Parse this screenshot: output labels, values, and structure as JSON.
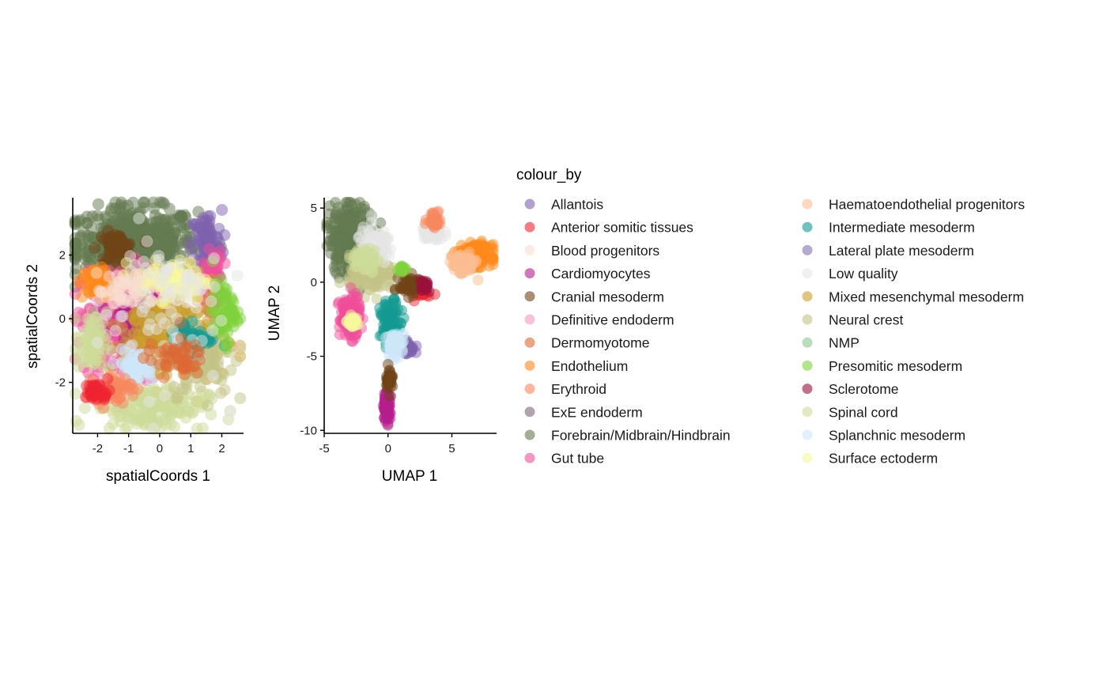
{
  "chart_data": [
    {
      "type": "scatter",
      "xlabel": "spatialCoords 1",
      "ylabel": "spatialCoords 2",
      "xlim": [
        -2.8,
        2.7
      ],
      "ylim": [
        -3.6,
        3.8
      ],
      "xticks": [
        -2,
        -1,
        0,
        1,
        2
      ],
      "yticks": [
        -2,
        0,
        2
      ],
      "xtick_labels": [
        "-2",
        "-1",
        "0",
        "1",
        "2"
      ],
      "ytick_labels": [
        "-2",
        "0",
        "2"
      ],
      "grid": false,
      "point_alpha": 0.5,
      "regions": [
        {
          "group": "Forebrain/Midbrain/Hindbrain",
          "cx": -0.8,
          "cy": 2.4,
          "rx": 2.0,
          "ry": 1.1,
          "n": 500
        },
        {
          "group": "Cranial mesoderm",
          "cx": -1.4,
          "cy": 2.2,
          "rx": 0.6,
          "ry": 0.5,
          "n": 60
        },
        {
          "group": "Allantois",
          "cx": 1.5,
          "cy": 2.4,
          "rx": 0.5,
          "ry": 1.0,
          "n": 90
        },
        {
          "group": "Gut tube",
          "cx": -1.2,
          "cy": -0.2,
          "rx": 1.3,
          "ry": 1.8,
          "n": 260
        },
        {
          "group": "Gut tube",
          "cx": 1.7,
          "cy": 1.2,
          "rx": 0.3,
          "ry": 0.9,
          "n": 70
        },
        {
          "group": "Cardiomyocytes",
          "cx": -0.6,
          "cy": 0.2,
          "rx": 0.8,
          "ry": 0.6,
          "n": 160
        },
        {
          "group": "Mixed mesenchymal mesoderm",
          "cx": 0.2,
          "cy": -0.6,
          "rx": 1.8,
          "ry": 1.6,
          "n": 240
        },
        {
          "group": "Spinal cord",
          "cx": -0.3,
          "cy": -2.8,
          "rx": 1.8,
          "ry": 0.7,
          "n": 160
        },
        {
          "group": "Spinal cord",
          "cx": -2.2,
          "cy": -0.8,
          "rx": 0.5,
          "ry": 1.0,
          "n": 70
        },
        {
          "group": "Surface ectoderm",
          "cx": 0.4,
          "cy": 1.2,
          "rx": 1.2,
          "ry": 0.6,
          "n": 100
        },
        {
          "group": "Neural crest",
          "cx": 1.4,
          "cy": -1.2,
          "rx": 1.0,
          "ry": 1.2,
          "n": 100
        },
        {
          "group": "Intermediate mesoderm",
          "cx": 1.0,
          "cy": -0.6,
          "rx": 0.8,
          "ry": 0.6,
          "n": 60
        },
        {
          "group": "Splanchnic mesoderm",
          "cx": -0.8,
          "cy": -1.5,
          "rx": 0.6,
          "ry": 0.5,
          "n": 70
        },
        {
          "group": "Erythroid",
          "cx": -1.5,
          "cy": -2.2,
          "rx": 0.6,
          "ry": 0.4,
          "n": 50
        },
        {
          "group": "Anterior somitic tissues",
          "cx": -2.0,
          "cy": -2.3,
          "rx": 0.4,
          "ry": 0.3,
          "n": 40
        },
        {
          "group": "Endothelium",
          "cx": -2.0,
          "cy": 1.1,
          "rx": 0.5,
          "ry": 0.5,
          "n": 60
        },
        {
          "group": "Presomitic mesoderm",
          "cx": 2.1,
          "cy": 0.2,
          "rx": 0.4,
          "ry": 0.9,
          "n": 70
        },
        {
          "group": "Low quality",
          "cx": 0.0,
          "cy": 0.4,
          "rx": 2.0,
          "ry": 2.6,
          "n": 90
        },
        {
          "group": "Dermomyotome",
          "cx": 0.5,
          "cy": -1.2,
          "rx": 0.9,
          "ry": 0.6,
          "n": 50
        },
        {
          "group": "Blood progenitors",
          "cx": -1.2,
          "cy": 0.8,
          "rx": 0.8,
          "ry": 0.6,
          "n": 40
        }
      ]
    },
    {
      "type": "scatter",
      "xlabel": "UMAP 1",
      "ylabel": "UMAP 2",
      "xlim": [
        -5,
        8.5
      ],
      "ylim": [
        -10.2,
        5.7
      ],
      "xticks": [
        -5,
        0,
        5
      ],
      "yticks": [
        -10,
        -5,
        0,
        5
      ],
      "xtick_labels": [
        "-5",
        "0",
        "5"
      ],
      "ytick_labels": [
        "-10",
        "-5",
        "0",
        "5"
      ],
      "grid": false,
      "point_alpha": 0.5,
      "regions": [
        {
          "group": "Forebrain/Midbrain/Hindbrain",
          "cx": -2.8,
          "cy": 3.0,
          "rx": 1.8,
          "ry": 2.3,
          "n": 350
        },
        {
          "group": "Neural crest",
          "cx": -1.2,
          "cy": 0.5,
          "rx": 1.8,
          "ry": 1.2,
          "n": 150
        },
        {
          "group": "Low quality",
          "cx": -1.0,
          "cy": 2.5,
          "rx": 1.5,
          "ry": 1.2,
          "n": 70
        },
        {
          "group": "Low quality",
          "cx": 3.5,
          "cy": 3.3,
          "rx": 0.9,
          "ry": 0.5,
          "n": 60
        },
        {
          "group": "Erythroid",
          "cx": 3.6,
          "cy": 4.3,
          "rx": 0.5,
          "ry": 0.6,
          "n": 40
        },
        {
          "group": "Endothelium",
          "cx": 6.8,
          "cy": 1.8,
          "rx": 1.3,
          "ry": 0.7,
          "n": 200
        },
        {
          "group": "Haematoendothelial progenitors",
          "cx": 5.9,
          "cy": 1.2,
          "rx": 0.9,
          "ry": 0.7,
          "n": 80
        },
        {
          "group": "Anterior somitic tissues",
          "cx": 2.6,
          "cy": -0.6,
          "rx": 0.5,
          "ry": 0.5,
          "n": 40
        },
        {
          "group": "Cranial mesoderm",
          "cx": 1.8,
          "cy": -0.2,
          "rx": 0.9,
          "ry": 0.6,
          "n": 70
        },
        {
          "group": "Gut tube",
          "cx": -3.0,
          "cy": -2.3,
          "rx": 0.8,
          "ry": 1.4,
          "n": 130
        },
        {
          "group": "Surface ectoderm",
          "cx": -2.8,
          "cy": -2.7,
          "rx": 0.4,
          "ry": 0.4,
          "n": 30
        },
        {
          "group": "Intermediate mesoderm",
          "cx": 0.2,
          "cy": -2.8,
          "rx": 0.8,
          "ry": 1.5,
          "n": 100
        },
        {
          "group": "Allantois",
          "cx": 1.5,
          "cy": -4.4,
          "rx": 0.6,
          "ry": 0.5,
          "n": 40
        },
        {
          "group": "Splanchnic mesoderm",
          "cx": 0.6,
          "cy": -4.2,
          "rx": 0.7,
          "ry": 0.8,
          "n": 60
        },
        {
          "group": "Cardiomyocytes",
          "cx": -0.1,
          "cy": -8.4,
          "rx": 0.25,
          "ry": 1.0,
          "n": 80
        },
        {
          "group": "Cranial mesoderm",
          "cx": 0.1,
          "cy": -6.5,
          "rx": 0.25,
          "ry": 0.8,
          "n": 40
        },
        {
          "group": "Spinal cord",
          "cx": -1.8,
          "cy": 1.5,
          "rx": 1.0,
          "ry": 0.8,
          "n": 60
        },
        {
          "group": "Presomitic mesoderm",
          "cx": 1.1,
          "cy": 0.9,
          "rx": 0.3,
          "ry": 0.3,
          "n": 15
        },
        {
          "group": "Sclerotome",
          "cx": 2.9,
          "cy": -0.2,
          "rx": 0.4,
          "ry": 0.4,
          "n": 20
        }
      ]
    }
  ],
  "legend": {
    "title": "colour_by",
    "items": [
      {
        "label": "Allantois",
        "color": "#7e62ae"
      },
      {
        "label": "Anterior somitic tissues",
        "color": "#ee2431"
      },
      {
        "label": "Blood progenitors",
        "color": "#f9decf"
      },
      {
        "label": "Cardiomyocytes",
        "color": "#b51d8d"
      },
      {
        "label": "Cranial mesoderm",
        "color": "#6f4316"
      },
      {
        "label": "Definitive endoderm",
        "color": "#f397c0"
      },
      {
        "label": "Dermomyotome",
        "color": "#dd6732"
      },
      {
        "label": "Endothelium",
        "color": "#ff891c"
      },
      {
        "label": "Erythroid",
        "color": "#f7875e"
      },
      {
        "label": "ExE endoderm",
        "color": "#7f6874"
      },
      {
        "label": "Forebrain/Midbrain/Hindbrain",
        "color": "#647a4f"
      },
      {
        "label": "Gut tube",
        "color": "#ef4e99"
      },
      {
        "label": "Haematoendothelial progenitors",
        "color": "#fbbe92"
      },
      {
        "label": "Intermediate mesoderm",
        "color": "#139992"
      },
      {
        "label": "Lateral plate mesoderm",
        "color": "#8870ad"
      },
      {
        "label": "Low quality",
        "color": "#e6e6e6"
      },
      {
        "label": "Mixed mesenchymal mesoderm",
        "color": "#c9a02a"
      },
      {
        "label": "Neural crest",
        "color": "#c3c388"
      },
      {
        "label": "NMP",
        "color": "#8ec792"
      },
      {
        "label": "Presomitic mesoderm",
        "color": "#7fd23b"
      },
      {
        "label": "Sclerotome",
        "color": "#990f3c"
      },
      {
        "label": "Spinal cord",
        "color": "#cddc9a"
      },
      {
        "label": "Splanchnic mesoderm",
        "color": "#cde8fa"
      },
      {
        "label": "Surface ectoderm",
        "color": "#f7f79e"
      }
    ]
  }
}
